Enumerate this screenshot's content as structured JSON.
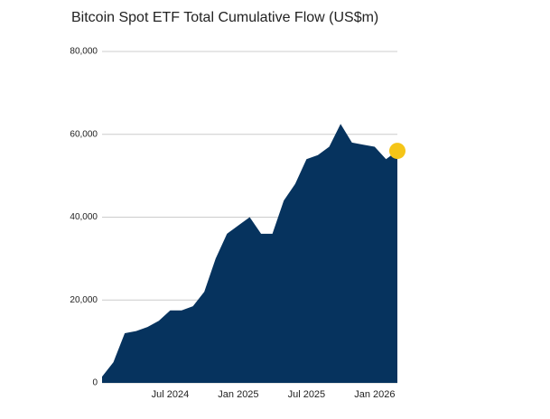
{
  "chart_data": {
    "type": "area",
    "title": "Bitcoin Spot ETF Total Cumulative Flow (US$m)",
    "x": [
      "2024-01",
      "2024-02",
      "2024-03",
      "2024-04",
      "2024-05",
      "2024-06",
      "2024-07",
      "2024-08",
      "2024-09",
      "2024-10",
      "2024-11",
      "2024-12",
      "2025-01",
      "2025-02",
      "2025-03",
      "2025-04",
      "2025-05",
      "2025-06",
      "2025-07",
      "2025-08",
      "2025-09",
      "2025-10",
      "2025-11",
      "2025-12",
      "2026-01",
      "2026-02",
      "2026-03"
    ],
    "values": [
      1500,
      5000,
      12000,
      12500,
      13500,
      15000,
      17500,
      17500,
      18500,
      22000,
      30000,
      36000,
      38000,
      40000,
      36000,
      36000,
      44000,
      48000,
      54000,
      55000,
      57000,
      62500,
      58000,
      57500,
      57000,
      54000,
      56000
    ],
    "color": "#06335e",
    "end_marker_color": "#f5c518",
    "xlim": [
      "2024-01",
      "2026-03"
    ],
    "xticks": [
      {
        "value": "2024-07",
        "label": "Jul 2024"
      },
      {
        "value": "2025-01",
        "label": "Jan 2025"
      },
      {
        "value": "2025-07",
        "label": "Jul 2025"
      },
      {
        "value": "2026-01",
        "label": "Jan 2026"
      }
    ],
    "ylim": [
      0,
      80000
    ],
    "yticks": [
      {
        "value": 0,
        "label": "0"
      },
      {
        "value": 20000,
        "label": "20,000"
      },
      {
        "value": 40000,
        "label": "40,000"
      },
      {
        "value": 60000,
        "label": "60,000"
      },
      {
        "value": 80000,
        "label": "80,000"
      }
    ],
    "grid": true
  }
}
